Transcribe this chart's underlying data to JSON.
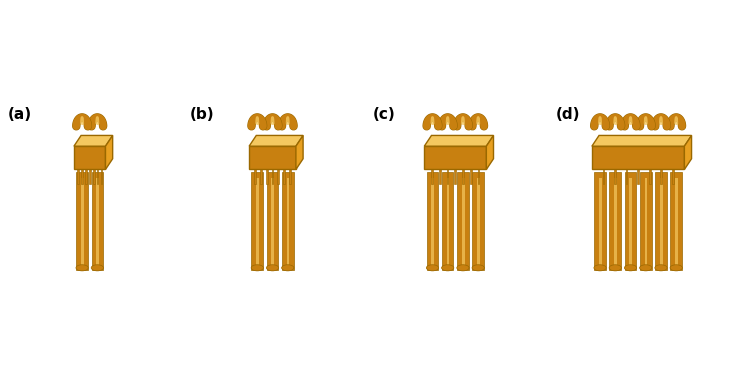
{
  "figure_width": 7.35,
  "figure_height": 3.82,
  "dpi": 100,
  "background_color": "#ffffff",
  "labels": [
    "(a)",
    "(b)",
    "(c)",
    "(d)"
  ],
  "label_fontsize": 11,
  "pipe_color": "#E8A020",
  "pipe_color_dark": "#9A6800",
  "pipe_color_mid": "#C88010",
  "pipe_color_light": "#F5C860",
  "pipe_color_shadow": "#7A5000",
  "n_pipes": [
    2,
    3,
    4,
    6
  ]
}
